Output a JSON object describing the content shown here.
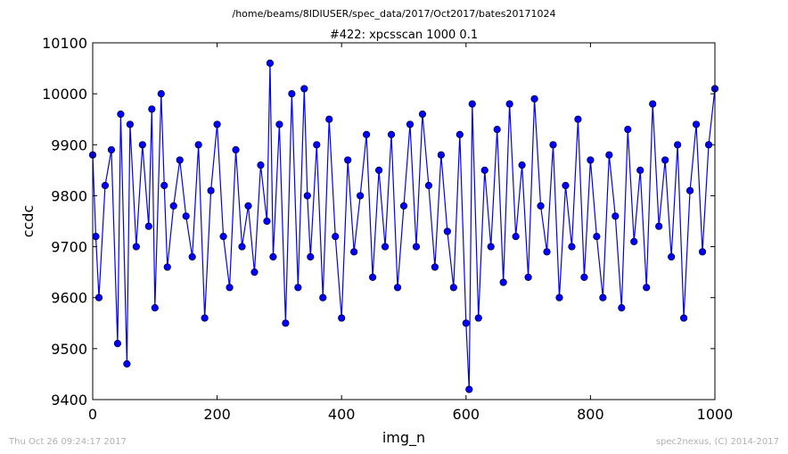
{
  "header": {
    "supertitle": "/home/beams/8IDIUSER/spec_data/2017/Oct2017/bates20171024"
  },
  "footer": {
    "left": "Thu Oct 26 09:24:17 2017",
    "right": "spec2nexus, (C) 2014-2017"
  },
  "chart_data": {
    "type": "line",
    "title": "#422: xpcsscan 1000 0.1",
    "xlabel": "img_n",
    "ylabel": "ccdc",
    "xlim": [
      0,
      1000
    ],
    "ylim": [
      9400,
      10100
    ],
    "xticks": [
      0,
      200,
      400,
      600,
      800,
      1000
    ],
    "yticks": [
      9400,
      9500,
      9600,
      9700,
      9800,
      9900,
      10000,
      10100
    ],
    "xtick_labels": [
      "0",
      "200",
      "400",
      "600",
      "800",
      "1000"
    ],
    "ytick_labels": [
      "9400",
      "9500",
      "9600",
      "9700",
      "9800",
      "9900",
      "10000",
      "10100"
    ],
    "grid": false,
    "legend": "none",
    "marker": "circle",
    "line_color": "#0000ff",
    "marker_color": "#0000ff",
    "series": [
      {
        "x": [
          0,
          5,
          10,
          20,
          30,
          40,
          45,
          55,
          60,
          70,
          80,
          90,
          95,
          100,
          110,
          115,
          120,
          130,
          140,
          150,
          160,
          170,
          180,
          190,
          200,
          210,
          220,
          230,
          240,
          250,
          260,
          270,
          280,
          285,
          290,
          300,
          310,
          320,
          330,
          340,
          345,
          350,
          360,
          370,
          380,
          390,
          400,
          410,
          420,
          430,
          440,
          450,
          460,
          470,
          480,
          490,
          500,
          510,
          520,
          530,
          540,
          550,
          560,
          570,
          580,
          590,
          600,
          605,
          610,
          620,
          630,
          640,
          650,
          660,
          670,
          680,
          690,
          700,
          710,
          720,
          730,
          740,
          750,
          760,
          770,
          780,
          790,
          800,
          810,
          820,
          830,
          840,
          850,
          860,
          870,
          880,
          890,
          900,
          910,
          920,
          930,
          940,
          950,
          960,
          970,
          980,
          990,
          1000
        ],
        "y": [
          9880,
          9720,
          9600,
          9820,
          9890,
          9510,
          9960,
          9470,
          9940,
          9700,
          9900,
          9740,
          9970,
          9580,
          10000,
          9820,
          9660,
          9780,
          9870,
          9760,
          9680,
          9900,
          9560,
          9810,
          9940,
          9720,
          9620,
          9890,
          9700,
          9780,
          9650,
          9860,
          9750,
          10060,
          9680,
          9940,
          9550,
          10000,
          9620,
          10010,
          9800,
          9680,
          9900,
          9600,
          9950,
          9720,
          9560,
          9870,
          9690,
          9800,
          9920,
          9640,
          9850,
          9700,
          9920,
          9620,
          9780,
          9940,
          9700,
          9960,
          9820,
          9660,
          9880,
          9730,
          9620,
          9920,
          9550,
          9420,
          9980,
          9560,
          9850,
          9700,
          9930,
          9630,
          9980,
          9720,
          9860,
          9640,
          9990,
          9780,
          9690,
          9900,
          9600,
          9820,
          9700,
          9950,
          9640,
          9870,
          9720,
          9600,
          9880,
          9760,
          9580,
          9930,
          9710,
          9850,
          9620,
          9980,
          9740,
          9870,
          9680,
          9900,
          9560,
          9810,
          9940,
          9690,
          9900,
          10010
        ]
      }
    ]
  }
}
